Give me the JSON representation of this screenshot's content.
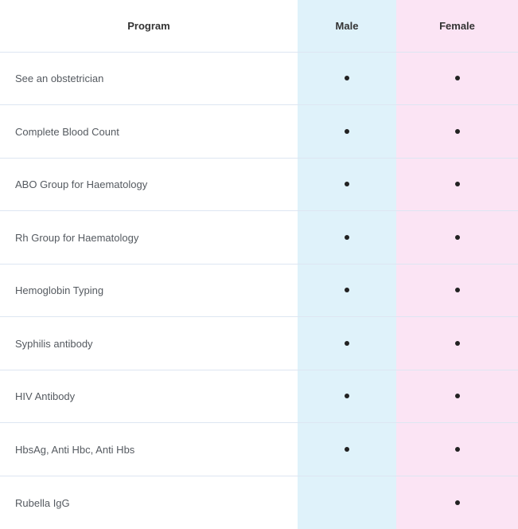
{
  "colors": {
    "male_column": "#dff2fa",
    "female_column": "#fbe4f4",
    "divider": "#dde6f2"
  },
  "header": {
    "program": "Program",
    "male": "Male",
    "female": "Female"
  },
  "rows": [
    {
      "program": "See an obstetrician",
      "male": true,
      "female": true
    },
    {
      "program": "Complete Blood Count",
      "male": true,
      "female": true
    },
    {
      "program": "ABO Group for Haematology",
      "male": true,
      "female": true
    },
    {
      "program": "Rh Group for Haematology",
      "male": true,
      "female": true
    },
    {
      "program": "Hemoglobin Typing",
      "male": true,
      "female": true
    },
    {
      "program": "Syphilis antibody",
      "male": true,
      "female": true
    },
    {
      "program": "HIV Antibody",
      "male": true,
      "female": true
    },
    {
      "program": "HbsAg, Anti Hbc, Anti Hbs",
      "male": true,
      "female": true
    },
    {
      "program": "Rubella IgG",
      "male": false,
      "female": true
    }
  ],
  "icons": {
    "included": "bullet-dot-icon"
  }
}
